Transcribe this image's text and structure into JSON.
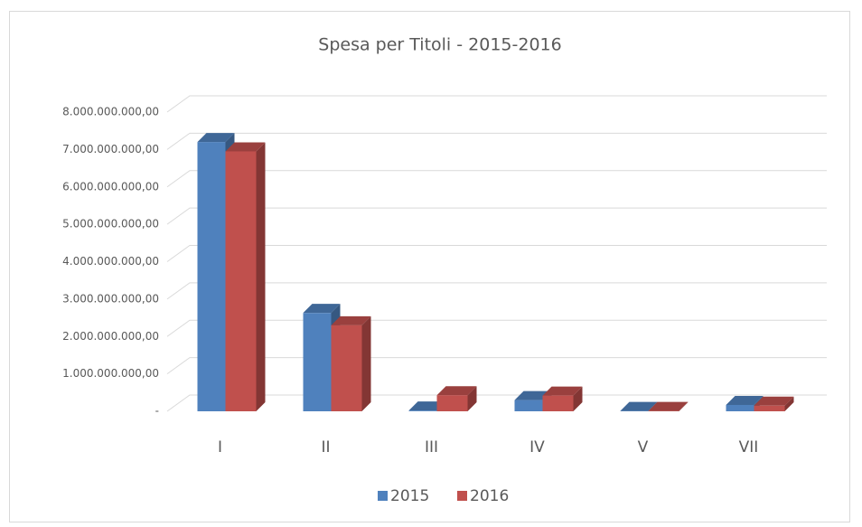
{
  "chart_data": {
    "type": "bar3d",
    "title": "Spesa per Titoli - 2015-2016",
    "categories": [
      "I",
      "II",
      "III",
      "IV",
      "V",
      "VII"
    ],
    "series": [
      {
        "name": "2015",
        "color": "#4f81bd",
        "values": [
          7200000000,
          2630000000,
          20000000,
          300000000,
          10000000,
          170000000
        ]
      },
      {
        "name": "2016",
        "color": "#c0504d",
        "values": [
          6950000000,
          2300000000,
          430000000,
          420000000,
          10000000,
          150000000
        ]
      }
    ],
    "ylim": [
      0,
      8000000000
    ],
    "yticks": [
      {
        "value": 0,
        "label": "-"
      },
      {
        "value": 1000000000,
        "label": "1.000.000.000,00"
      },
      {
        "value": 2000000000,
        "label": "2.000.000.000,00"
      },
      {
        "value": 3000000000,
        "label": "3.000.000.000,00"
      },
      {
        "value": 4000000000,
        "label": "4.000.000.000,00"
      },
      {
        "value": 5000000000,
        "label": "5.000.000.000,00"
      },
      {
        "value": 6000000000,
        "label": "6.000.000.000,00"
      },
      {
        "value": 7000000000,
        "label": "7.000.000.000,00"
      },
      {
        "value": 8000000000,
        "label": "8.000.000.000,00"
      }
    ],
    "grid": true,
    "legend": "bottom"
  }
}
